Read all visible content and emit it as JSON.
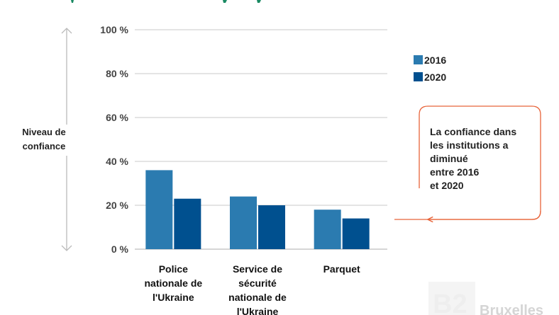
{
  "colors": {
    "s2016": "#2b7bb0",
    "s2020": "#00508f",
    "grid": "#c8c8c8",
    "callout": "#e8643a",
    "title": "#1a8a63",
    "arrow": "#bbbbbb"
  },
  "chart_data": {
    "type": "bar",
    "categories": [
      [
        "Police",
        "nationale de",
        "l'Ukraine"
      ],
      [
        "Service de",
        "sécurité",
        "nationale de",
        "l'Ukraine"
      ],
      [
        "Parquet"
      ]
    ],
    "series": [
      {
        "name": "2016",
        "values": [
          36,
          24,
          18
        ]
      },
      {
        "name": "2020",
        "values": [
          23,
          20,
          14
        ]
      }
    ],
    "yticks": [
      "0 %",
      "20 %",
      "40 %",
      "60 %",
      "80 %",
      "100 %"
    ],
    "ylim": [
      0,
      100
    ],
    "ylabel": [
      "Niveau de",
      "confiance"
    ],
    "legend_position": "top-right",
    "grid": true,
    "annotation": [
      "La confiance dans",
      "les institutions a",
      "diminué",
      "entre 2016",
      "et 2020"
    ]
  },
  "watermark": {
    "mark": "B2",
    "text": "Bruxelles"
  }
}
